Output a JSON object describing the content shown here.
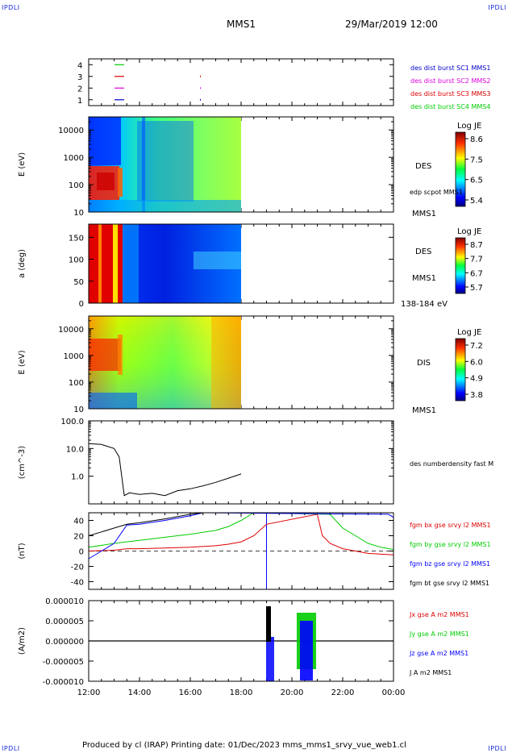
{
  "corners": {
    "tl": "IPDLI",
    "tr": "IPDLI",
    "bl": "IPDLI",
    "br": "IPDLI"
  },
  "header": {
    "title": "MMS1",
    "date": "29/Mar/2019 12:00"
  },
  "footer": {
    "text": "Produced by cl (IRAP)   Printing date: 01/Dec/2023   mms_mms1_srvy_vue_web1.cl"
  },
  "colors": {
    "blue": "#0000ff",
    "red": "#dd0000",
    "green": "#00cc00",
    "magenta": "#dd00dd",
    "black": "#000000"
  },
  "time_axis": {
    "labels": [
      "12:00",
      "14:00",
      "16:00",
      "18:00",
      "20:00",
      "22:00",
      "00:00"
    ],
    "range_hours": [
      12,
      24
    ]
  },
  "chart_data": [
    {
      "type": "line",
      "id": "burst",
      "yticks": [
        "1",
        "2",
        "3",
        "4"
      ],
      "ylim": [
        0.5,
        4.5
      ],
      "legend": [
        {
          "label": "des dist burst SC1 MMS1",
          "color": "#0000cc"
        },
        {
          "label": "des dist burst SC2 MMS2",
          "color": "#dd00dd"
        },
        {
          "label": "des dist burst SC3 MMS3",
          "color": "#dd0000"
        },
        {
          "label": "des dist burst SC4 MMS4",
          "color": "#00cc00"
        }
      ]
    },
    {
      "type": "heatmap",
      "id": "des-energy",
      "ylabel": "E (eV)",
      "yscale": "log",
      "ylim": [
        10,
        30000
      ],
      "yticks": [
        "10",
        "100",
        "1000",
        "10000"
      ],
      "colorbar": {
        "title": "Log JE",
        "ticks": [
          "8.6",
          "7.5",
          "6.5",
          "5.4"
        ]
      },
      "labels": [
        "DES",
        "edp scpot MMS1",
        "MMS1"
      ],
      "x_range_hours": [
        12,
        18
      ]
    },
    {
      "type": "heatmap",
      "id": "des-pitch",
      "ylabel": "a (deg)",
      "ylim": [
        0,
        180
      ],
      "yticks": [
        "0",
        "50",
        "100",
        "150"
      ],
      "colorbar": {
        "title": "Log JE",
        "ticks": [
          "8.7",
          "7.7",
          "6.7",
          "5.7"
        ]
      },
      "labels": [
        "DES",
        "MMS1",
        "138-184 eV"
      ],
      "x_range_hours": [
        12,
        18
      ]
    },
    {
      "type": "heatmap",
      "id": "dis-energy",
      "ylabel": "E (eV)",
      "yscale": "log",
      "ylim": [
        10,
        30000
      ],
      "yticks": [
        "10",
        "100",
        "1000",
        "10000"
      ],
      "colorbar": {
        "title": "Log JE",
        "ticks": [
          "7.2",
          "6.0",
          "4.9",
          "3.8"
        ]
      },
      "labels": [
        "DIS",
        "MMS1"
      ],
      "x_range_hours": [
        12,
        18
      ]
    },
    {
      "type": "line",
      "id": "density",
      "ylabel": "(cm^-3)",
      "yscale": "log",
      "ylim": [
        0.1,
        100
      ],
      "yticks": [
        "1.0",
        "10.0",
        "100.0"
      ],
      "series": [
        {
          "name": "des numberdensity fast M",
          "color": "#000000",
          "x": [
            12.0,
            12.5,
            13.0,
            13.2,
            13.4,
            13.6,
            14.0,
            14.5,
            15.0,
            15.5,
            16.0,
            16.5,
            17.0,
            17.5,
            18.0
          ],
          "y": [
            15,
            14,
            10,
            5,
            0.2,
            0.25,
            0.22,
            0.24,
            0.2,
            0.3,
            0.35,
            0.45,
            0.6,
            0.85,
            1.2
          ]
        }
      ]
    },
    {
      "type": "line",
      "id": "magnetic-field",
      "ylabel": "(nT)",
      "ylim": [
        -50,
        50
      ],
      "yticks": [
        "-40",
        "-20",
        "0",
        "20",
        "40"
      ],
      "series": [
        {
          "name": "fgm bx gse srvy l2 MMS1",
          "color": "#dd0000",
          "x": [
            12.0,
            13.0,
            13.5,
            14.0,
            15.0,
            16.0,
            17.0,
            17.5,
            18.0,
            18.5,
            19.0,
            21.0,
            21.2,
            21.5,
            22.0,
            23.0,
            24.0
          ],
          "y": [
            0,
            1,
            3,
            3,
            4,
            5,
            7,
            9,
            12,
            20,
            35,
            48,
            20,
            10,
            3,
            -3,
            -5
          ]
        },
        {
          "name": "fgm by gse srvy l2 MMS1",
          "color": "#00cc00",
          "x": [
            12.0,
            13.0,
            13.5,
            14.0,
            15.0,
            16.0,
            17.0,
            17.5,
            18.0,
            18.5,
            21.5,
            22.0,
            22.5,
            23.0,
            23.5,
            24.0
          ],
          "y": [
            5,
            10,
            12,
            14,
            18,
            22,
            27,
            32,
            40,
            50,
            48,
            30,
            20,
            10,
            5,
            2
          ]
        },
        {
          "name": "fgm bz gse srvy l2 MMS1",
          "color": "#0000ff",
          "x": [
            12.0,
            12.5,
            13.0,
            13.5,
            14.0,
            15.0,
            15.5,
            16.0,
            16.5,
            23.8,
            24.0
          ],
          "y": [
            -10,
            0,
            10,
            34,
            35,
            40,
            43,
            46,
            50,
            48,
            44
          ]
        },
        {
          "name": "fgm bt gse srvy l2 MMS1",
          "color": "#000000",
          "x": [
            12.0,
            12.5,
            13.0,
            13.5,
            14.0,
            15.0,
            15.5,
            16.0,
            16.5
          ],
          "y": [
            20,
            25,
            30,
            35,
            37,
            42,
            45,
            48,
            50
          ]
        }
      ]
    },
    {
      "type": "line",
      "id": "current-density",
      "ylabel": "(A/m2)",
      "ylim": [
        -1e-05,
        1e-05
      ],
      "yticks": [
        "-0.000010",
        "-0.000005",
        "0.000000",
        "0.000005",
        "0.000010"
      ],
      "series": [
        {
          "name": "Jx gse A m2 MMS1",
          "color": "#dd0000"
        },
        {
          "name": "Jy gse A m2 MMS1",
          "color": "#00cc00"
        },
        {
          "name": "Jz gse A m2 MMS1",
          "color": "#0000ff"
        },
        {
          "name": "J A m2 MMS1",
          "color": "#000000"
        }
      ]
    }
  ]
}
